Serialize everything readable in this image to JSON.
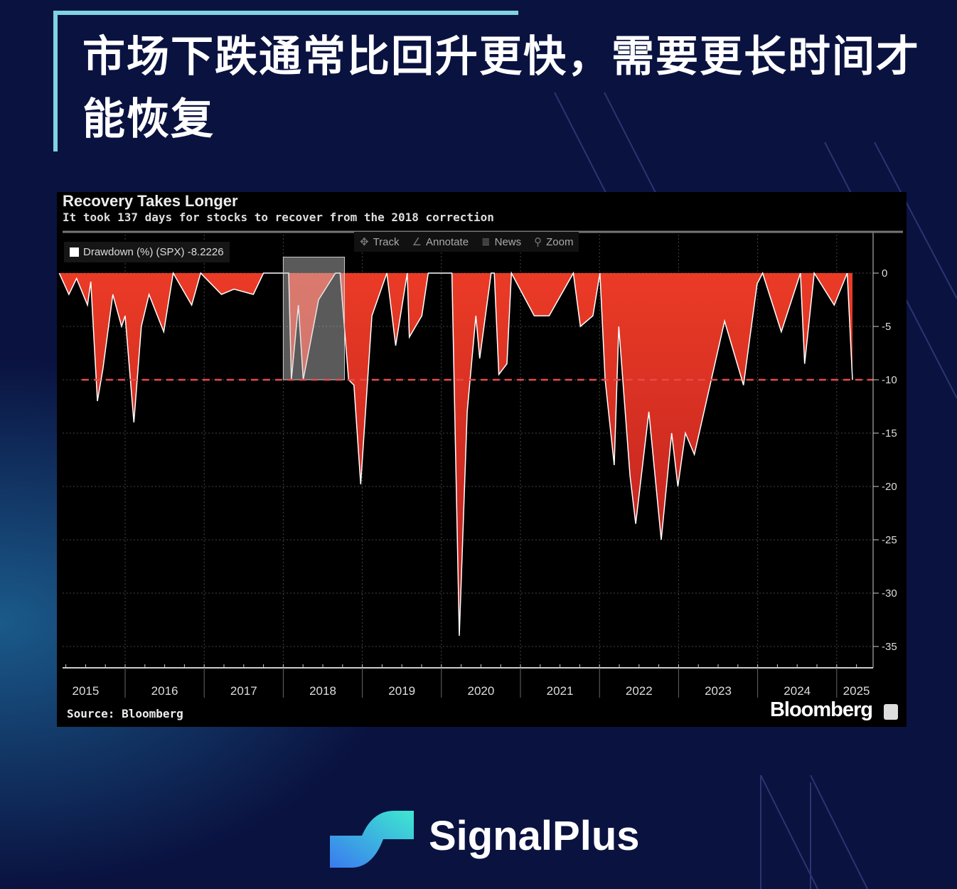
{
  "headline": "市场下跌通常比回升更快，需要更长时间才能恢复",
  "brand": {
    "name": "SignalPlus"
  },
  "chart_panel": {
    "toolbar": [
      {
        "label": "Track",
        "icon": "crosshair-icon"
      },
      {
        "label": "Annotate",
        "icon": "pencil-icon"
      },
      {
        "label": "News",
        "icon": "list-icon"
      },
      {
        "label": "Zoom",
        "icon": "magnifier-icon"
      }
    ],
    "legend_label": "Drawdown (%) (SPX) -8.2226",
    "source": "Source: Bloomberg",
    "logo_text": "Bloomberg"
  },
  "chart_data": {
    "type": "area",
    "title": "Recovery Takes Longer",
    "subtitle": "It took 137 days for stocks to recover from the 2018 correction",
    "series": [
      {
        "name": "Drawdown (%) (SPX)",
        "color": "#e8301f",
        "points": [
          [
            "2015-03-01",
            0
          ],
          [
            "2015-04-15",
            -2
          ],
          [
            "2015-05-20",
            -0.5
          ],
          [
            "2015-07-10",
            -3
          ],
          [
            "2015-07-25",
            -0.8
          ],
          [
            "2015-08-25",
            -12
          ],
          [
            "2015-09-20",
            -9
          ],
          [
            "2015-11-05",
            -2
          ],
          [
            "2015-12-15",
            -5
          ],
          [
            "2016-01-01",
            -4
          ],
          [
            "2016-02-11",
            -14
          ],
          [
            "2016-03-15",
            -5
          ],
          [
            "2016-04-20",
            -2
          ],
          [
            "2016-06-27",
            -5.5
          ],
          [
            "2016-08-10",
            0
          ],
          [
            "2016-11-04",
            -3
          ],
          [
            "2016-12-15",
            0
          ],
          [
            "2017-03-20",
            -2
          ],
          [
            "2017-05-17",
            -1.5
          ],
          [
            "2017-08-15",
            -2
          ],
          [
            "2017-10-01",
            0
          ],
          [
            "2018-01-26",
            0
          ],
          [
            "2018-02-08",
            -10
          ],
          [
            "2018-03-10",
            -3
          ],
          [
            "2018-04-02",
            -10
          ],
          [
            "2018-06-12",
            -2.5
          ],
          [
            "2018-08-29",
            0
          ],
          [
            "2018-09-20",
            0
          ],
          [
            "2018-10-29",
            -10
          ],
          [
            "2018-11-23",
            -10.5
          ],
          [
            "2018-12-24",
            -19.8
          ],
          [
            "2019-02-15",
            -4
          ],
          [
            "2019-04-23",
            0
          ],
          [
            "2019-06-03",
            -6.8
          ],
          [
            "2019-07-26",
            0
          ],
          [
            "2019-08-05",
            -6
          ],
          [
            "2019-10-02",
            -4
          ],
          [
            "2019-11-01",
            0
          ],
          [
            "2020-02-19",
            0
          ],
          [
            "2020-03-23",
            -34
          ],
          [
            "2020-04-29",
            -13
          ],
          [
            "2020-06-08",
            -4
          ],
          [
            "2020-06-26",
            -8
          ],
          [
            "2020-08-18",
            0
          ],
          [
            "2020-09-02",
            0
          ],
          [
            "2020-09-23",
            -9.5
          ],
          [
            "2020-10-30",
            -8.5
          ],
          [
            "2020-11-20",
            0
          ],
          [
            "2021-03-04",
            -4
          ],
          [
            "2021-05-12",
            -4
          ],
          [
            "2021-09-02",
            0
          ],
          [
            "2021-10-04",
            -5
          ],
          [
            "2021-12-01",
            -4
          ],
          [
            "2022-01-03",
            0
          ],
          [
            "2022-01-27",
            -10
          ],
          [
            "2022-03-08",
            -18
          ],
          [
            "2022-03-29",
            -5
          ],
          [
            "2022-05-20",
            -19
          ],
          [
            "2022-06-16",
            -23.5
          ],
          [
            "2022-08-16",
            -13
          ],
          [
            "2022-10-12",
            -25
          ],
          [
            "2022-11-30",
            -15
          ],
          [
            "2022-12-28",
            -20
          ],
          [
            "2023-02-02",
            -15
          ],
          [
            "2023-03-13",
            -17
          ],
          [
            "2023-07-31",
            -4.5
          ],
          [
            "2023-10-27",
            -10.5
          ],
          [
            "2023-12-29",
            -1
          ],
          [
            "2024-01-24",
            0
          ],
          [
            "2024-04-19",
            -5.5
          ],
          [
            "2024-07-16",
            0
          ],
          [
            "2024-08-05",
            -8.5
          ],
          [
            "2024-09-19",
            0
          ],
          [
            "2024-12-20",
            -3
          ],
          [
            "2025-02-19",
            0
          ],
          [
            "2025-03-13",
            -10
          ]
        ]
      }
    ],
    "reference_line": {
      "value": -10,
      "color": "#e84a4a",
      "style": "dashed"
    },
    "highlight": {
      "from": "2018-01-01",
      "to": "2018-10-10",
      "from_value": 1.5,
      "to_value": -10
    },
    "x_ticks": [
      "2015",
      "2016",
      "2017",
      "2018",
      "2019",
      "2020",
      "2021",
      "2022",
      "2023",
      "2024",
      "2025"
    ],
    "y_ticks": [
      0,
      -5,
      -10,
      -15,
      -20,
      -25,
      -30,
      -35
    ],
    "ylim": [
      -37,
      3.5
    ],
    "y_axis_side": "right",
    "grid": true
  }
}
